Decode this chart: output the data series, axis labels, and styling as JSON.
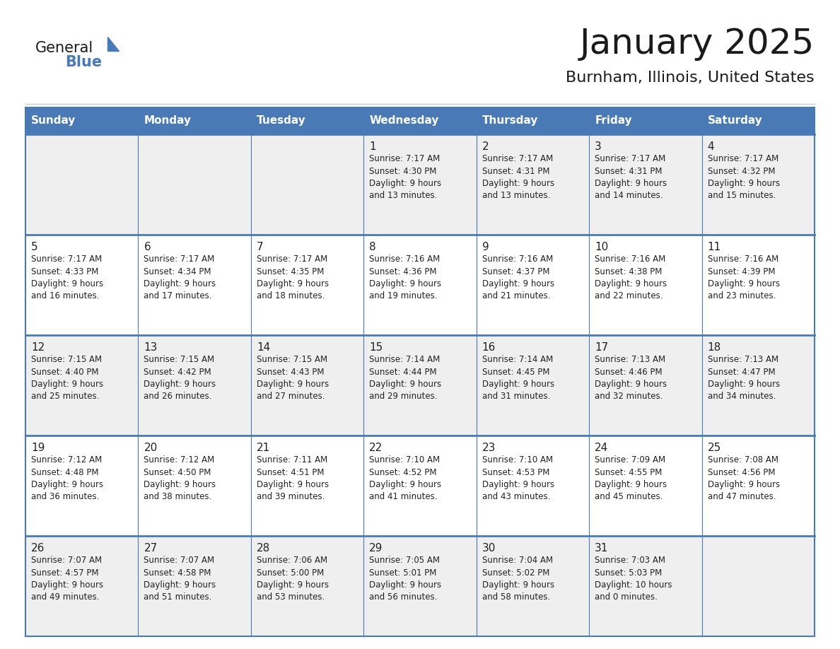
{
  "title": "January 2025",
  "subtitle": "Burnham, Illinois, United States",
  "header_color": "#4a7ab5",
  "header_text_color": "#FFFFFF",
  "cell_bg_gray": "#EFEFEF",
  "cell_bg_white": "#FFFFFF",
  "border_color": "#4a7ab5",
  "text_color": "#222222",
  "days_of_week": [
    "Sunday",
    "Monday",
    "Tuesday",
    "Wednesday",
    "Thursday",
    "Friday",
    "Saturday"
  ],
  "weeks": [
    [
      {
        "day": "",
        "info": ""
      },
      {
        "day": "",
        "info": ""
      },
      {
        "day": "",
        "info": ""
      },
      {
        "day": "1",
        "info": "Sunrise: 7:17 AM\nSunset: 4:30 PM\nDaylight: 9 hours\nand 13 minutes."
      },
      {
        "day": "2",
        "info": "Sunrise: 7:17 AM\nSunset: 4:31 PM\nDaylight: 9 hours\nand 13 minutes."
      },
      {
        "day": "3",
        "info": "Sunrise: 7:17 AM\nSunset: 4:31 PM\nDaylight: 9 hours\nand 14 minutes."
      },
      {
        "day": "4",
        "info": "Sunrise: 7:17 AM\nSunset: 4:32 PM\nDaylight: 9 hours\nand 15 minutes."
      }
    ],
    [
      {
        "day": "5",
        "info": "Sunrise: 7:17 AM\nSunset: 4:33 PM\nDaylight: 9 hours\nand 16 minutes."
      },
      {
        "day": "6",
        "info": "Sunrise: 7:17 AM\nSunset: 4:34 PM\nDaylight: 9 hours\nand 17 minutes."
      },
      {
        "day": "7",
        "info": "Sunrise: 7:17 AM\nSunset: 4:35 PM\nDaylight: 9 hours\nand 18 minutes."
      },
      {
        "day": "8",
        "info": "Sunrise: 7:16 AM\nSunset: 4:36 PM\nDaylight: 9 hours\nand 19 minutes."
      },
      {
        "day": "9",
        "info": "Sunrise: 7:16 AM\nSunset: 4:37 PM\nDaylight: 9 hours\nand 21 minutes."
      },
      {
        "day": "10",
        "info": "Sunrise: 7:16 AM\nSunset: 4:38 PM\nDaylight: 9 hours\nand 22 minutes."
      },
      {
        "day": "11",
        "info": "Sunrise: 7:16 AM\nSunset: 4:39 PM\nDaylight: 9 hours\nand 23 minutes."
      }
    ],
    [
      {
        "day": "12",
        "info": "Sunrise: 7:15 AM\nSunset: 4:40 PM\nDaylight: 9 hours\nand 25 minutes."
      },
      {
        "day": "13",
        "info": "Sunrise: 7:15 AM\nSunset: 4:42 PM\nDaylight: 9 hours\nand 26 minutes."
      },
      {
        "day": "14",
        "info": "Sunrise: 7:15 AM\nSunset: 4:43 PM\nDaylight: 9 hours\nand 27 minutes."
      },
      {
        "day": "15",
        "info": "Sunrise: 7:14 AM\nSunset: 4:44 PM\nDaylight: 9 hours\nand 29 minutes."
      },
      {
        "day": "16",
        "info": "Sunrise: 7:14 AM\nSunset: 4:45 PM\nDaylight: 9 hours\nand 31 minutes."
      },
      {
        "day": "17",
        "info": "Sunrise: 7:13 AM\nSunset: 4:46 PM\nDaylight: 9 hours\nand 32 minutes."
      },
      {
        "day": "18",
        "info": "Sunrise: 7:13 AM\nSunset: 4:47 PM\nDaylight: 9 hours\nand 34 minutes."
      }
    ],
    [
      {
        "day": "19",
        "info": "Sunrise: 7:12 AM\nSunset: 4:48 PM\nDaylight: 9 hours\nand 36 minutes."
      },
      {
        "day": "20",
        "info": "Sunrise: 7:12 AM\nSunset: 4:50 PM\nDaylight: 9 hours\nand 38 minutes."
      },
      {
        "day": "21",
        "info": "Sunrise: 7:11 AM\nSunset: 4:51 PM\nDaylight: 9 hours\nand 39 minutes."
      },
      {
        "day": "22",
        "info": "Sunrise: 7:10 AM\nSunset: 4:52 PM\nDaylight: 9 hours\nand 41 minutes."
      },
      {
        "day": "23",
        "info": "Sunrise: 7:10 AM\nSunset: 4:53 PM\nDaylight: 9 hours\nand 43 minutes."
      },
      {
        "day": "24",
        "info": "Sunrise: 7:09 AM\nSunset: 4:55 PM\nDaylight: 9 hours\nand 45 minutes."
      },
      {
        "day": "25",
        "info": "Sunrise: 7:08 AM\nSunset: 4:56 PM\nDaylight: 9 hours\nand 47 minutes."
      }
    ],
    [
      {
        "day": "26",
        "info": "Sunrise: 7:07 AM\nSunset: 4:57 PM\nDaylight: 9 hours\nand 49 minutes."
      },
      {
        "day": "27",
        "info": "Sunrise: 7:07 AM\nSunset: 4:58 PM\nDaylight: 9 hours\nand 51 minutes."
      },
      {
        "day": "28",
        "info": "Sunrise: 7:06 AM\nSunset: 5:00 PM\nDaylight: 9 hours\nand 53 minutes."
      },
      {
        "day": "29",
        "info": "Sunrise: 7:05 AM\nSunset: 5:01 PM\nDaylight: 9 hours\nand 56 minutes."
      },
      {
        "day": "30",
        "info": "Sunrise: 7:04 AM\nSunset: 5:02 PM\nDaylight: 9 hours\nand 58 minutes."
      },
      {
        "day": "31",
        "info": "Sunrise: 7:03 AM\nSunset: 5:03 PM\nDaylight: 10 hours\nand 0 minutes."
      },
      {
        "day": "",
        "info": ""
      }
    ]
  ],
  "logo_general_color": "#1a1a1a",
  "logo_blue_color": "#4a7ab5",
  "logo_triangle_color": "#4a7ab5"
}
